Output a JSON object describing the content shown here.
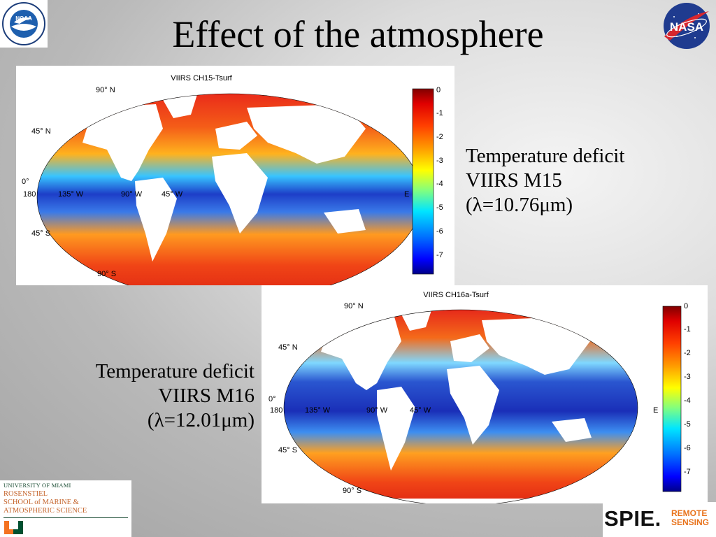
{
  "title": "Effect of the atmosphere",
  "logos": {
    "noaa": "NOAA",
    "nasa": "NASA",
    "university": {
      "line1": "UNIVERSITY OF MIAMI",
      "line2": "ROSENSTIEL",
      "line3": "SCHOOL of MARINE &",
      "line4": "ATMOSPHERIC SCIENCE"
    },
    "spie": {
      "brand": "SPIE.",
      "tag1": "REMOTE",
      "tag2": "SENSING"
    }
  },
  "maps": [
    {
      "title": "VIIRS CH15-Tsurf",
      "lat_labels": [
        "90° N",
        "45° N",
        "0°",
        "45° S",
        "90° S"
      ],
      "lon_labels": [
        "180",
        "135° W",
        "90° W",
        "45° W",
        "E"
      ],
      "colorbar_ticks": [
        "0",
        "-1",
        "-2",
        "-3",
        "-4",
        "-5",
        "-6",
        "-7"
      ],
      "caption": {
        "line1": "Temperature deficit",
        "line2": "VIIRS M15",
        "line3": "(λ=10.76μm)"
      }
    },
    {
      "title": "VIIRS CH16a-Tsurf",
      "lat_labels": [
        "90° N",
        "45° N",
        "0°",
        "45° S",
        "90° S"
      ],
      "lon_labels": [
        "180",
        "135° W",
        "90° W",
        "45° W",
        "E"
      ],
      "colorbar_ticks": [
        "0",
        "-1",
        "-2",
        "-3",
        "-4",
        "-5",
        "-6",
        "-7"
      ],
      "caption": {
        "line1": "Temperature deficit",
        "line2": "VIIRS M16",
        "line3": "(λ=12.01μm)"
      }
    }
  ],
  "colors": {
    "colorbar": [
      "#800000",
      "#ff0000",
      "#ff8000",
      "#ffff00",
      "#80ff80",
      "#00ffff",
      "#0080ff",
      "#0000ff",
      "#000080"
    ]
  }
}
